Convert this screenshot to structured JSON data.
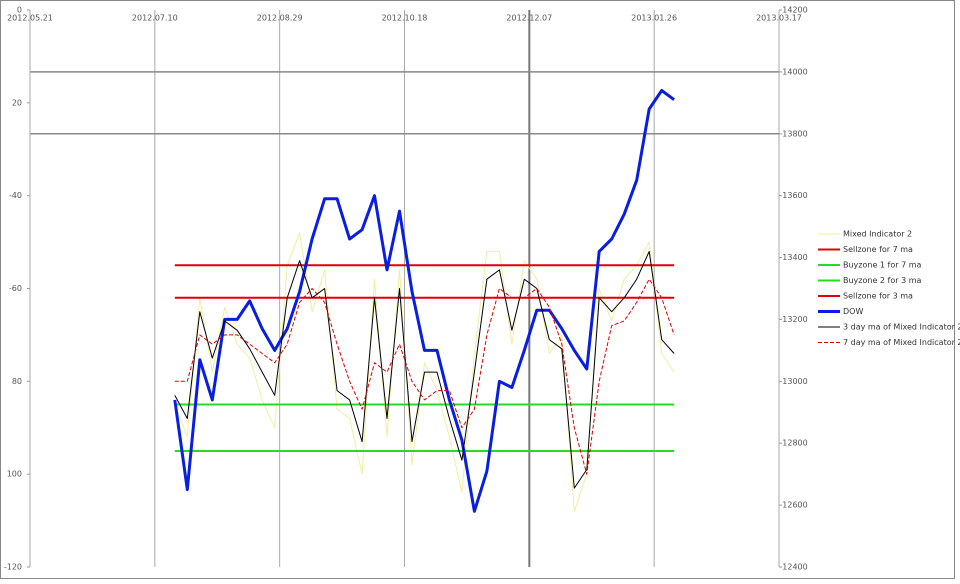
{
  "chart_data": {
    "type": "line",
    "xlim": [
      "2012.05.21",
      "2013.03.17"
    ],
    "xticks": [
      "2012.05.21",
      "2012.07.10",
      "2012.08.29",
      "2012.10.18",
      "2012.12.07",
      "2013.01.26",
      "2013.03.17"
    ],
    "ylim": [
      -120,
      0
    ],
    "yticks": [
      0,
      {
        "value": -20,
        "label": "20"
      },
      -40,
      -60,
      {
        "value": -80,
        "label": "80"
      },
      {
        "value": -100,
        "label": "100"
      },
      -120
    ],
    "y2lim": [
      12400,
      14200
    ],
    "y2ticks": [
      12400,
      12600,
      12800,
      13000,
      13200,
      13400,
      13600,
      13800,
      14000,
      14200
    ],
    "y2_grid_lines": [
      14000,
      13800
    ],
    "x": [
      "2012.07.18",
      "2012.07.23",
      "2012.07.28",
      "2012.08.02",
      "2012.08.07",
      "2012.08.12",
      "2012.08.17",
      "2012.08.22",
      "2012.08.27",
      "2012.09.01",
      "2012.09.06",
      "2012.09.11",
      "2012.09.16",
      "2012.09.21",
      "2012.09.26",
      "2012.10.01",
      "2012.10.06",
      "2012.10.11",
      "2012.10.16",
      "2012.10.21",
      "2012.10.26",
      "2012.10.31",
      "2012.11.05",
      "2012.11.10",
      "2012.11.15",
      "2012.11.20",
      "2012.11.25",
      "2012.11.30",
      "2012.12.05",
      "2012.12.10",
      "2012.12.15",
      "2012.12.20",
      "2012.12.25",
      "2012.12.30",
      "2013.01.04",
      "2013.01.09",
      "2013.01.14",
      "2013.01.19",
      "2013.01.24",
      "2013.01.29",
      "2013.02.03"
    ],
    "series": [
      {
        "name": "Mixed Indicator 2",
        "color": "#f3eda0",
        "width": 1,
        "values": [
          -85,
          -92,
          -62,
          -78,
          -64,
          -72,
          -75,
          -84,
          -90,
          -55,
          -48,
          -65,
          -56,
          -86,
          -88,
          -100,
          -58,
          -92,
          -56,
          -98,
          -76,
          -82,
          -92,
          -104,
          -74,
          -52,
          -52,
          -72,
          -54,
          -58,
          -74,
          -70,
          -108,
          -100,
          -60,
          -67,
          -58,
          -55,
          -50,
          -74,
          -78
        ]
      },
      {
        "name": "Sellzone for 7 ma",
        "color": "#e00000",
        "width": 2,
        "x": [
          "2012.07.18",
          "2013.02.03"
        ],
        "values": [
          -55,
          -55
        ]
      },
      {
        "name": "Buyzone 1 for 7 ma",
        "color": "#22dd22",
        "width": 2,
        "x": [
          "2012.07.18",
          "2013.02.03"
        ],
        "values": [
          -85,
          -85
        ]
      },
      {
        "name": "Buyzone 2 for 3 ma",
        "color": "#22dd22",
        "width": 2,
        "x": [
          "2012.07.18",
          "2013.02.03"
        ],
        "values": [
          -95,
          -95
        ]
      },
      {
        "name": "Sellzone for 3 ma",
        "color": "#e00000",
        "width": 2,
        "x": [
          "2012.07.18",
          "2013.02.03"
        ],
        "values": [
          -62,
          -62
        ]
      },
      {
        "name": "DOW",
        "color": "#0a1ee0",
        "width": 3,
        "axis": "y2",
        "values": [
          12940,
          12650,
          13070,
          12940,
          13200,
          13200,
          13260,
          13170,
          13100,
          13170,
          13290,
          13460,
          13590,
          13590,
          13460,
          13490,
          13600,
          13360,
          13550,
          13290,
          13100,
          13100,
          12940,
          12810,
          12580,
          12710,
          13000,
          12980,
          13100,
          13230,
          13230,
          13170,
          13100,
          13040,
          13420,
          13460,
          13540,
          13650,
          13880,
          13940,
          13910
        ]
      },
      {
        "name": "3 day ma of Mixed Indicator 2",
        "color": "#000000",
        "width": 1,
        "values": [
          -83,
          -88,
          -65,
          -75,
          -67,
          -69,
          -73,
          -78,
          -83,
          -62,
          -54,
          -62,
          -60,
          -82,
          -84,
          -93,
          -62,
          -88,
          -60,
          -93,
          -78,
          -78,
          -88,
          -97,
          -78,
          -58,
          -56,
          -69,
          -58,
          -60,
          -71,
          -73,
          -103,
          -99,
          -62,
          -65,
          -62,
          -58,
          -52,
          -71,
          -74
        ]
      },
      {
        "name": "7 day ma of Mixed Indicator 2",
        "color": "#dd0000",
        "width": 1,
        "dashed": true,
        "values": [
          -80,
          -80,
          -70,
          -72,
          -70,
          -70,
          -72,
          -74,
          -76,
          -72,
          -63,
          -60,
          -63,
          -72,
          -80,
          -86,
          -76,
          -78,
          -72,
          -80,
          -84,
          -82,
          -82,
          -90,
          -86,
          -70,
          -60,
          -62,
          -62,
          -60,
          -64,
          -72,
          -90,
          -100,
          -80,
          -68,
          -67,
          -63,
          -58,
          -62,
          -70
        ]
      }
    ]
  }
}
